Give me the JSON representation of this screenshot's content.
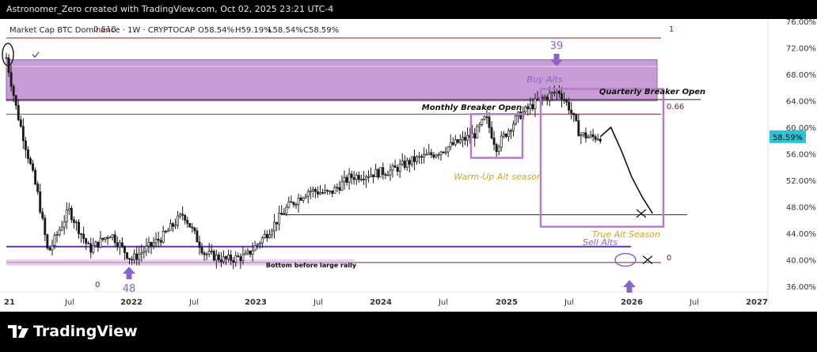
{
  "header": {
    "caption": "Astronomer_Zero created with TradingView.com, Oct 02, 2025 23:21 UTC-4"
  },
  "legend": {
    "symbol": "Market Cap BTC Dominance · 1W · CRYPTOCAP",
    "open": "O58.54%",
    "high": "H59.19%",
    "low": "L58.54%",
    "close": "C58.59%",
    "fib_overlay": "0.618"
  },
  "footer": {
    "brand": "TradingView"
  },
  "colors": {
    "candle": "#1a1a1a",
    "zone": "#b57cc9",
    "zone_border": "#9b5fb3",
    "arrow": "#8e63c9",
    "price_tag": "#26c6da",
    "fib_line": "#8b1a1a",
    "purple_line": "#5b2fc9",
    "annotation_gold": "#d9a320"
  },
  "chart_data": {
    "type": "candlestick",
    "title": "Market Cap BTC Dominance",
    "interval": "1W",
    "exchange": "CRYPTOCAP",
    "y_unit": "%",
    "ylim": [
      34.5,
      77
    ],
    "y_ticks": [
      "76.00%",
      "72.00%",
      "68.00%",
      "64.00%",
      "60.00%",
      "56.00%",
      "52.00%",
      "48.00%",
      "44.00%",
      "40.00%",
      "36.00%"
    ],
    "x_ticks": [
      "21",
      "Jul",
      "2022",
      "Jul",
      "2023",
      "Jul",
      "2024",
      "Jul",
      "2025",
      "Jul",
      "2026",
      "Jul",
      "2027"
    ],
    "last_price": "58.59%",
    "series_approx": [
      {
        "date": "2021-01",
        "value": 70.5
      },
      {
        "date": "2021-02",
        "value": 62.5
      },
      {
        "date": "2021-04",
        "value": 50.0
      },
      {
        "date": "2021-05",
        "value": 41.0
      },
      {
        "date": "2021-07",
        "value": 47.5
      },
      {
        "date": "2021-09",
        "value": 41.5
      },
      {
        "date": "2021-11",
        "value": 44.0
      },
      {
        "date": "2022-01",
        "value": 40.0
      },
      {
        "date": "2022-04",
        "value": 43.5
      },
      {
        "date": "2022-06",
        "value": 47.0
      },
      {
        "date": "2022-08",
        "value": 41.0
      },
      {
        "date": "2022-10",
        "value": 40.0
      },
      {
        "date": "2022-12",
        "value": 40.5
      },
      {
        "date": "2023-02",
        "value": 44.0
      },
      {
        "date": "2023-04",
        "value": 48.0
      },
      {
        "date": "2023-06",
        "value": 50.5
      },
      {
        "date": "2023-08",
        "value": 50.0
      },
      {
        "date": "2023-10",
        "value": 52.5
      },
      {
        "date": "2023-12",
        "value": 53.0
      },
      {
        "date": "2024-02",
        "value": 53.5
      },
      {
        "date": "2024-04",
        "value": 55.0
      },
      {
        "date": "2024-06",
        "value": 56.0
      },
      {
        "date": "2024-08",
        "value": 57.5
      },
      {
        "date": "2024-10",
        "value": 59.0
      },
      {
        "date": "2024-11",
        "value": 61.5
      },
      {
        "date": "2024-12",
        "value": 57.0
      },
      {
        "date": "2025-02",
        "value": 61.5
      },
      {
        "date": "2025-04",
        "value": 64.0
      },
      {
        "date": "2025-06",
        "value": 65.5
      },
      {
        "date": "2025-07",
        "value": 63.0
      },
      {
        "date": "2025-08",
        "value": 59.0
      },
      {
        "date": "2025-09",
        "value": 58.5
      },
      {
        "date": "2025-10",
        "value": 58.59
      }
    ],
    "projection_approx": [
      {
        "date": "2025-10",
        "value": 58.6
      },
      {
        "date": "2025-11",
        "value": 60.0
      },
      {
        "date": "2025-12",
        "value": 56.5
      },
      {
        "date": "2026-01",
        "value": 52.5
      },
      {
        "date": "2026-02",
        "value": 49.5
      },
      {
        "date": "2026-03",
        "value": 47.0
      }
    ],
    "annotations": {
      "buy_alts": "Buy Alts",
      "sell_alts": "Sell Alts",
      "monthly_breaker": "Monthly Breaker Open",
      "quarterly_breaker": "Quarterly Breaker Open",
      "warm_up": "Warm-Up Alt season",
      "true_alt": "True Alt Season",
      "bottom": "Bottom before large rally",
      "count_top": "39",
      "count_bottom": "48",
      "fib_one": "1",
      "fib_066": "0.66",
      "fib_zero_left": "0",
      "fib_zero_right": "0"
    },
    "levels": {
      "fib_1": 73.5,
      "monthly_breaker": 62.0,
      "quarterly_breaker": 64.2,
      "fib_066": 62.0,
      "true_alt_line": 46.8,
      "sell_alts": 42.0,
      "fib_0": 39.6
    },
    "zones": [
      {
        "name": "buy-alts-zone",
        "from": 64.0,
        "to": 70.2
      }
    ]
  }
}
